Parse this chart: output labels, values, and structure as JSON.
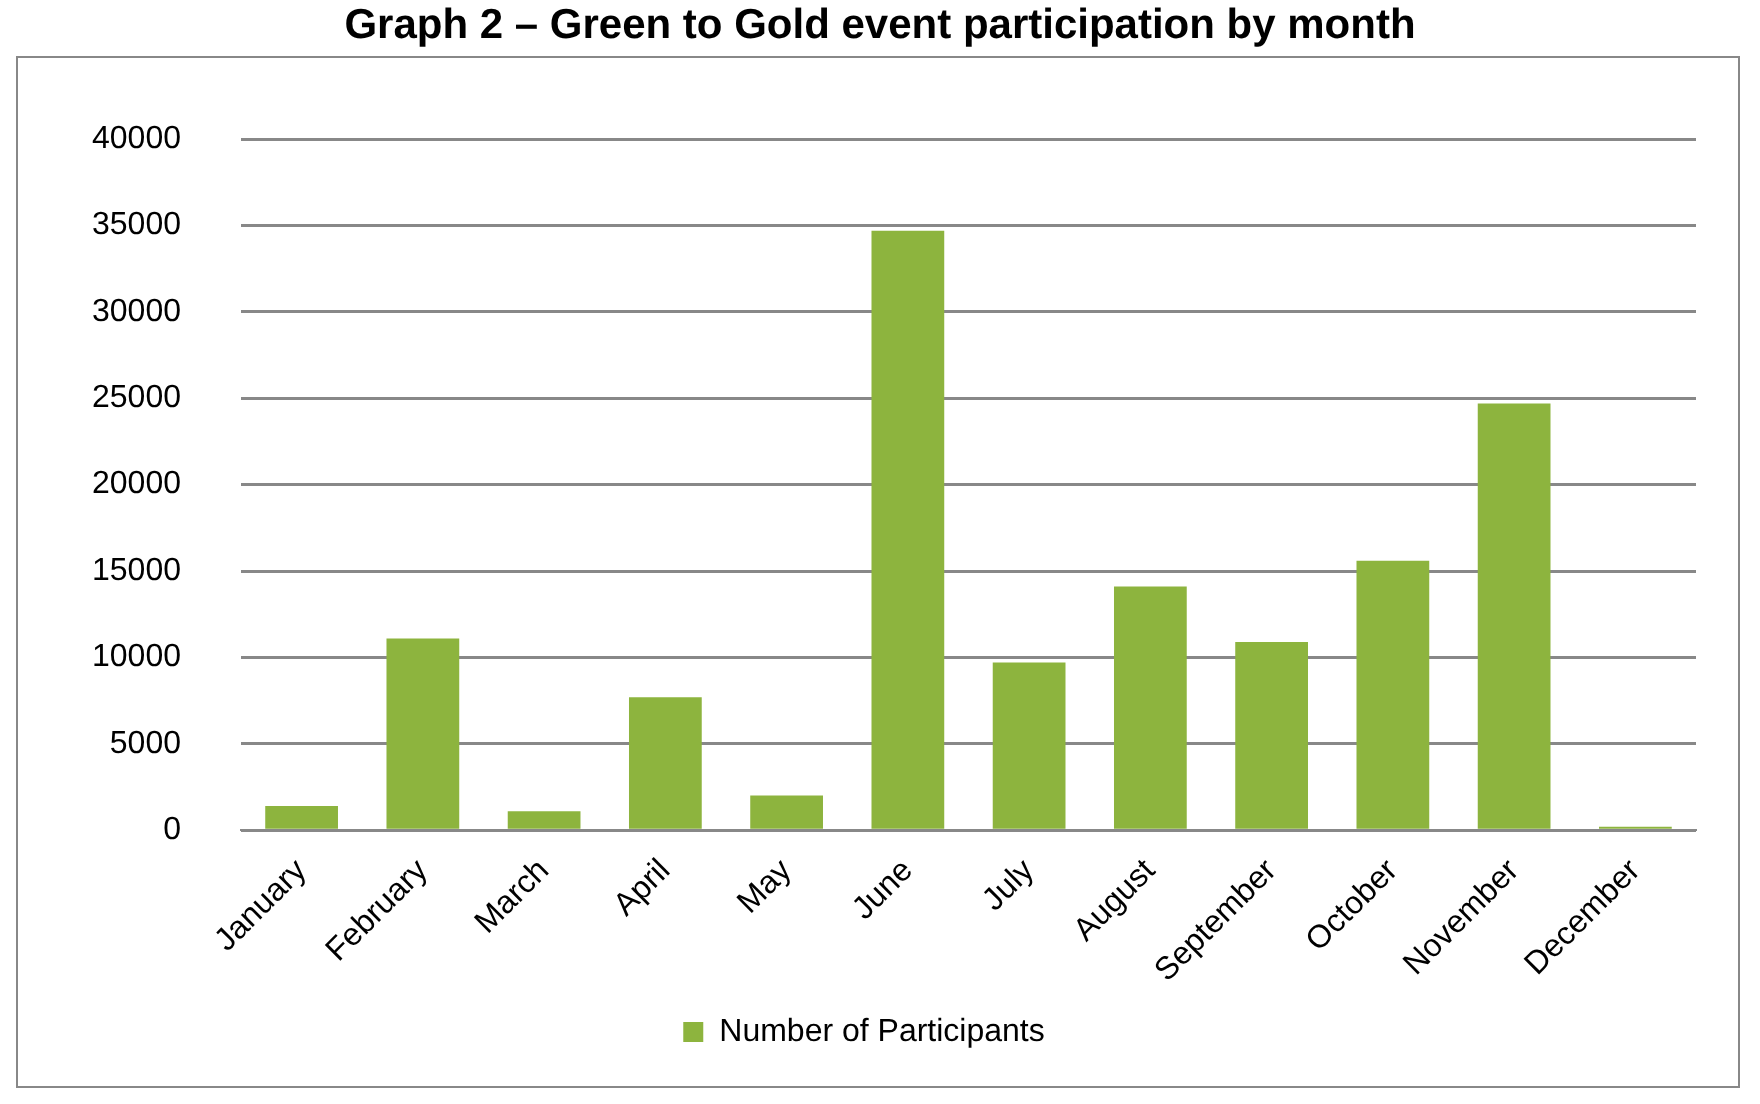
{
  "chart_data": {
    "type": "bar",
    "title": "Graph 2 – Green to Gold event participation by month",
    "categories": [
      "January",
      "February",
      "March",
      "April",
      "May",
      "June",
      "July",
      "August",
      "September",
      "October",
      "November",
      "December"
    ],
    "series": [
      {
        "name": "Number of Participants",
        "color": "#8db43e",
        "values": [
          1400,
          11100,
          1100,
          7700,
          2000,
          34700,
          9700,
          14100,
          10900,
          15600,
          24700,
          200
        ]
      }
    ],
    "ylim": [
      0,
      40000
    ],
    "yticks": [
      0,
      5000,
      10000,
      15000,
      20000,
      25000,
      30000,
      35000,
      40000
    ],
    "grid": "y",
    "legend": "bottom"
  }
}
